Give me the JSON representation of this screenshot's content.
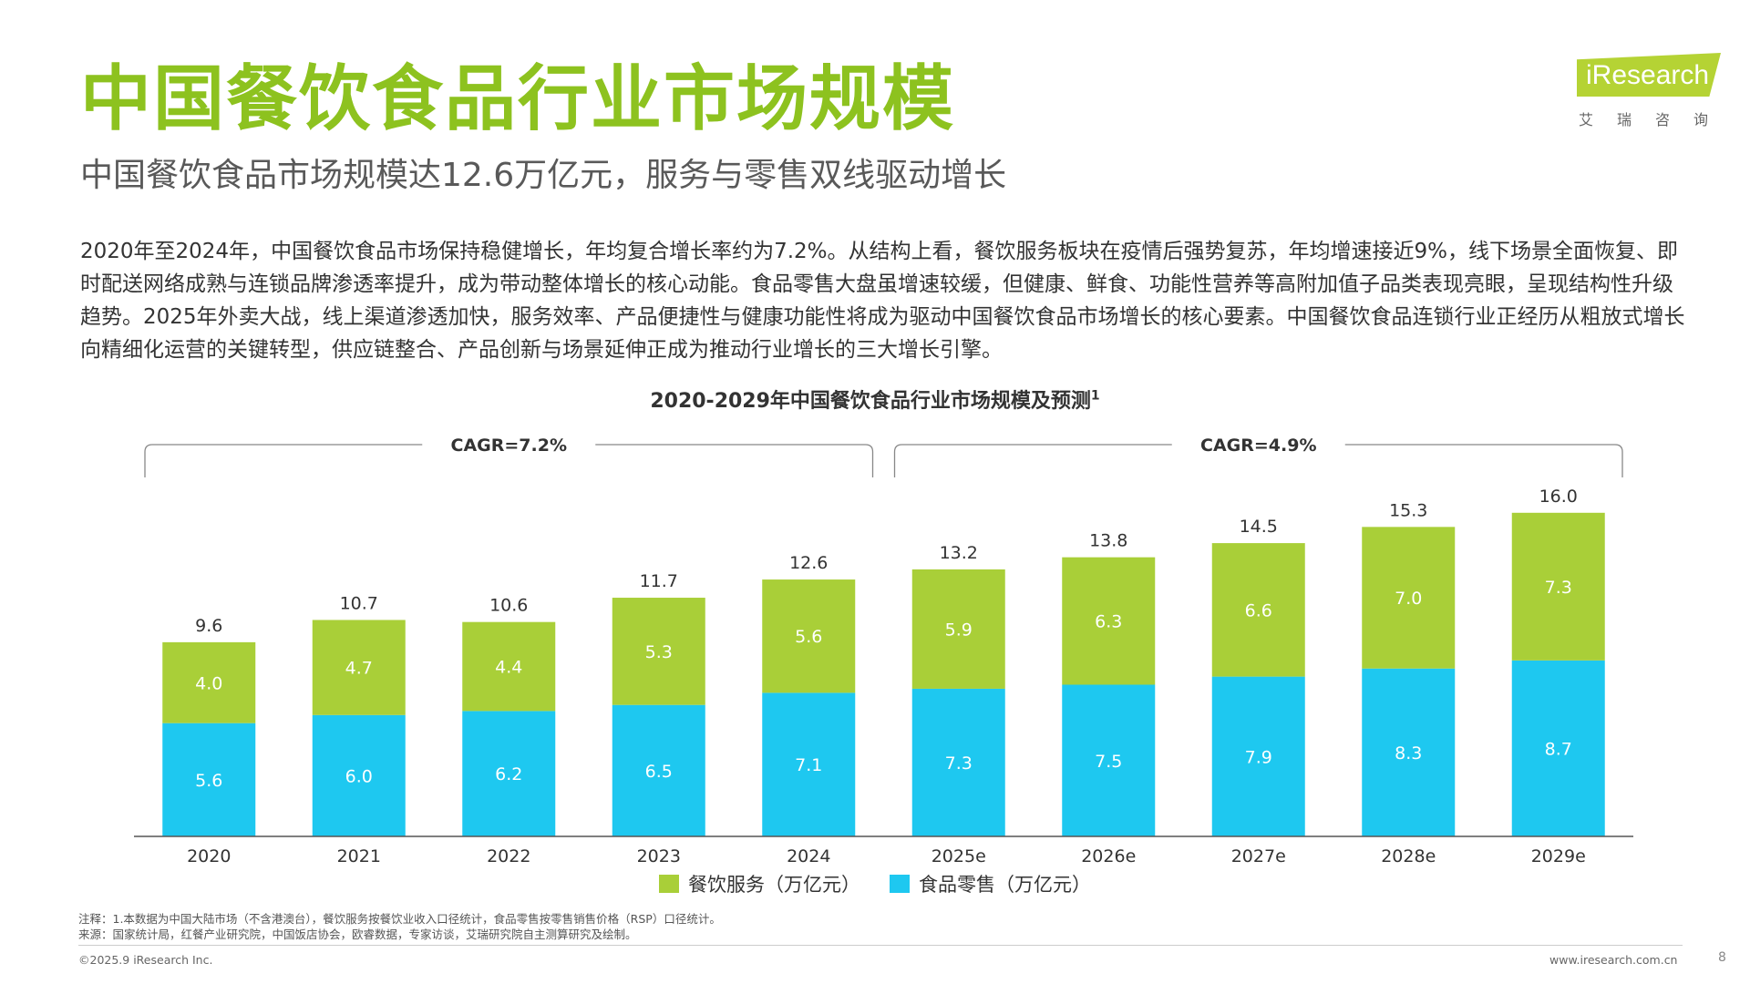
{
  "page": {
    "title": "中国餐饮食品行业市场规模",
    "subtitle": "中国餐饮食品市场规模达12.6万亿元，服务与零售双线驱动增长",
    "body": "2020年至2024年，中国餐饮食品市场保持稳健增长，年均复合增长率约为7.2%。从结构上看，餐饮服务板块在疫情后强势复苏，年均增速接近9%，线下场景全面恢复、即时配送网络成熟与连锁品牌渗透率提升，成为带动整体增长的核心动能。食品零售大盘虽增速较缓，但健康、鲜食、功能性营养等高附加值子品类表现亮眼，呈现结构性升级趋势。2025年外卖大战，线上渠道渗透加快，服务效率、产品便捷性与健康功能性将成为驱动中国餐饮食品市场增长的核心要素。中国餐饮食品连锁行业正经历从粗放式增长向精细化运营的关键转型，供应链整合、产品创新与场景延伸正成为推动行业增长的三大增长引擎。"
  },
  "logo": {
    "text": "iResearch",
    "cn": "艾瑞咨询",
    "color": "#b5d334"
  },
  "chart_data": {
    "type": "bar",
    "stacked": true,
    "title": "2020-2029年中国餐饮食品行业市场规模及预测",
    "title_sup": "1",
    "categories": [
      "2020",
      "2021",
      "2022",
      "2023",
      "2024",
      "2025e",
      "2026e",
      "2027e",
      "2028e",
      "2029e"
    ],
    "series": [
      {
        "name": "食品零售（万亿元）",
        "color": "#1ec8f0",
        "values": [
          5.6,
          6.0,
          6.2,
          6.5,
          7.1,
          7.3,
          7.5,
          7.9,
          8.3,
          8.7
        ]
      },
      {
        "name": "餐饮服务（万亿元）",
        "color": "#a9cf38",
        "values": [
          4.0,
          4.7,
          4.4,
          5.3,
          5.6,
          5.9,
          6.3,
          6.6,
          7.0,
          7.3
        ]
      }
    ],
    "totals": [
      9.6,
      10.7,
      10.6,
      11.7,
      12.6,
      13.2,
      13.8,
      14.5,
      15.3,
      16.0
    ],
    "annotations": [
      {
        "label": "CAGR=7.2%",
        "from": "2020",
        "to": "2024"
      },
      {
        "label": "CAGR=4.9%",
        "from": "2025e",
        "to": "2029e"
      }
    ],
    "ylim": [
      0,
      20
    ],
    "grid": false,
    "legend_position": "bottom"
  },
  "legend": [
    {
      "label": "餐饮服务（万亿元）",
      "color": "#a9cf38"
    },
    {
      "label": "食品零售（万亿元）",
      "color": "#1ec8f0"
    }
  ],
  "notes": {
    "note": "注释：1.本数据为中国大陆市场（不含港澳台），餐饮服务按餐饮业收入口径统计，食品零售按零售销售价格（RSP）口径统计。",
    "source": "来源：国家统计局，红餐产业研究院，中国饭店协会，欧睿数据，专家访谈，艾瑞研究院自主测算研究及绘制。"
  },
  "footer": {
    "copyright": "©2025.9 iResearch Inc.",
    "url": "www.iresearch.com.cn",
    "page_number": "8"
  }
}
